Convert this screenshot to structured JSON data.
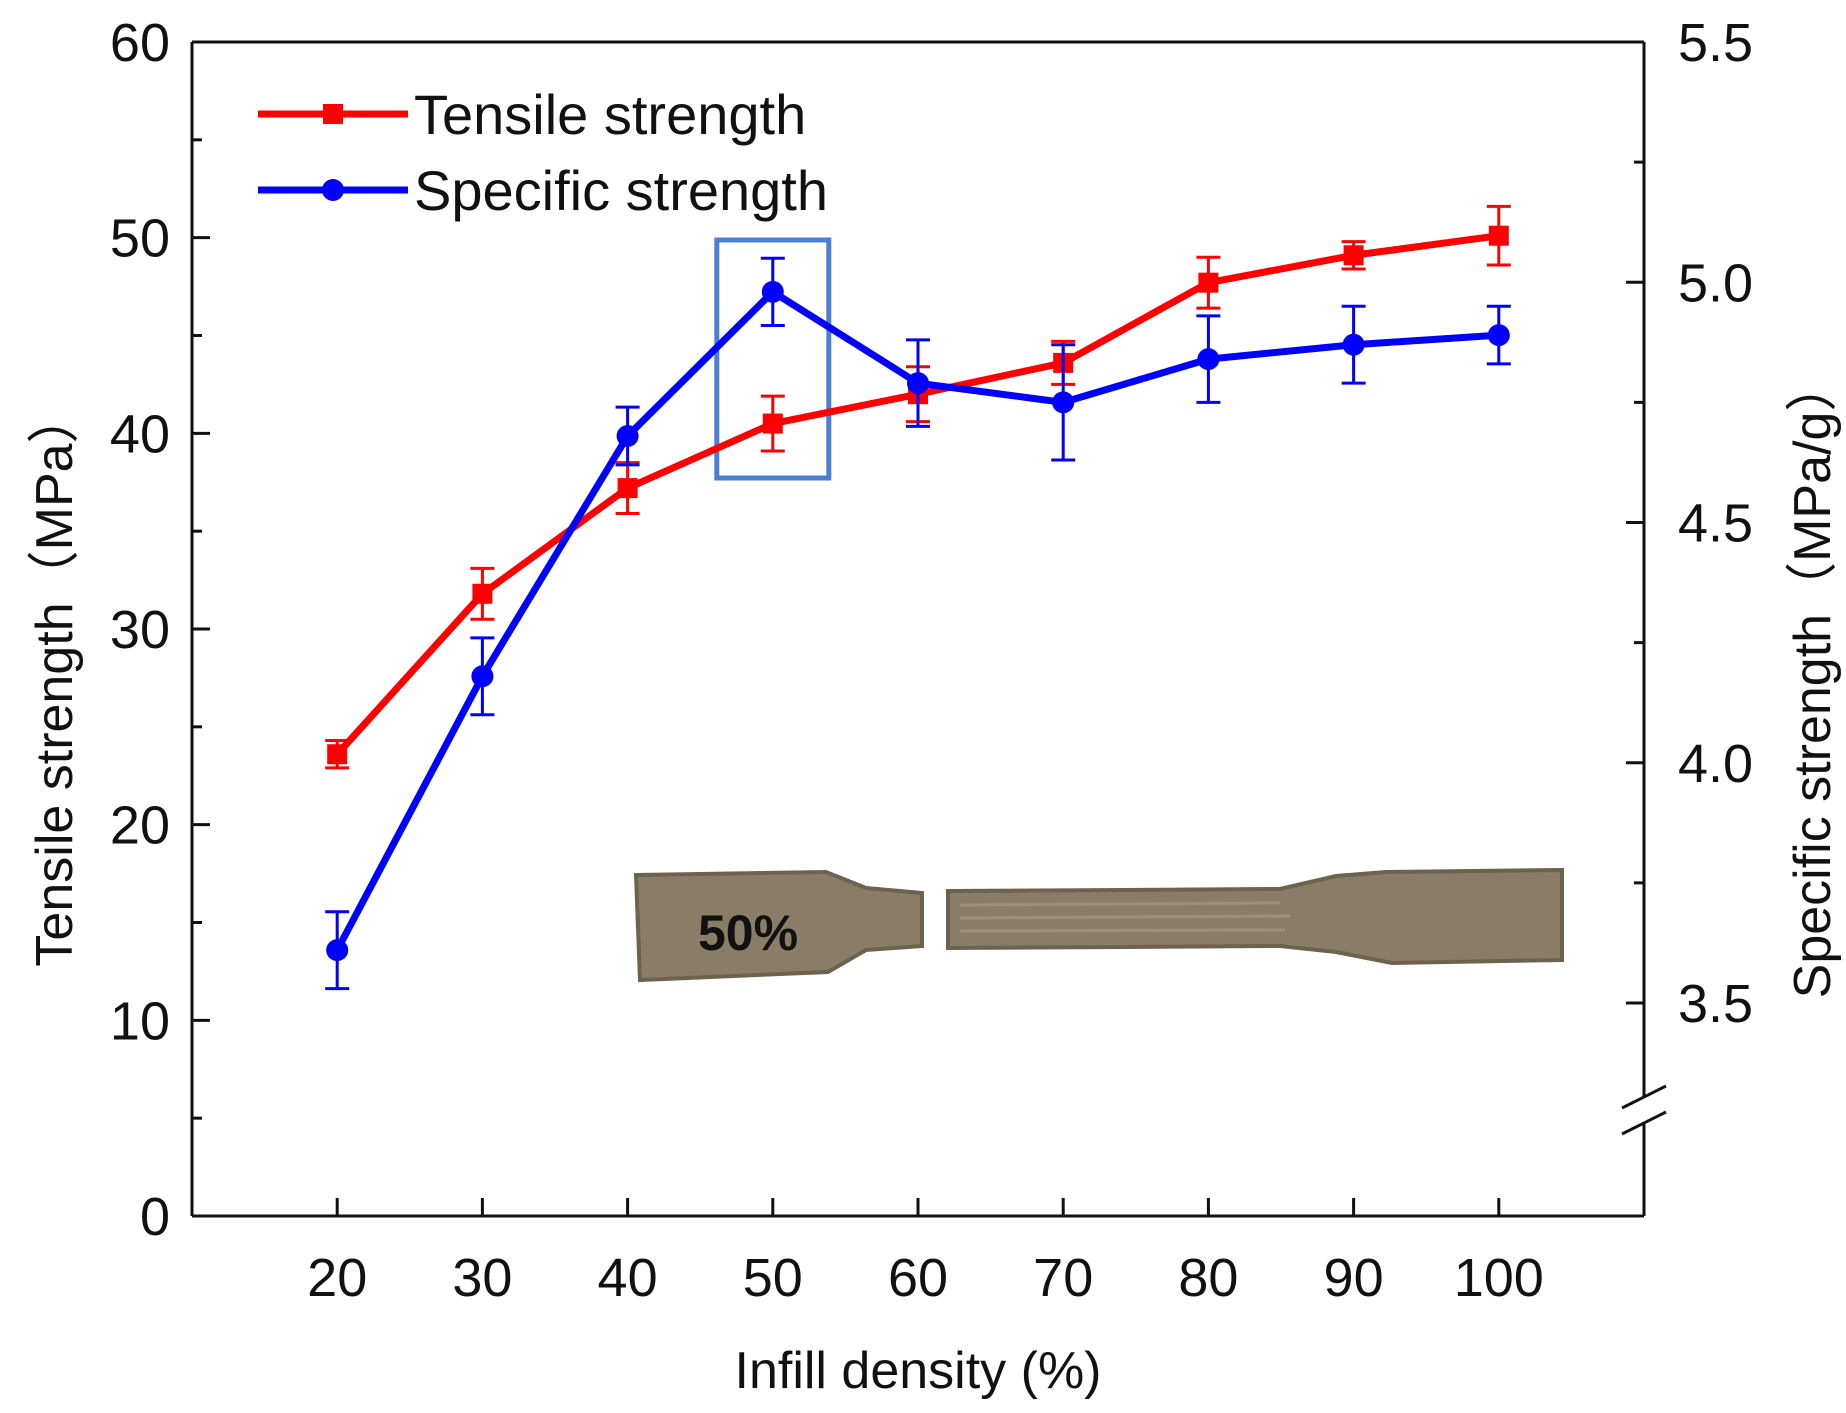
{
  "chart_data": {
    "type": "line",
    "xlabel": "Infill density (%)",
    "ylabel_left": "Tensile strength（MPa）",
    "ylabel_right": "Specific strength（MPa/g）",
    "x": [
      20,
      30,
      40,
      50,
      60,
      70,
      80,
      90,
      100
    ],
    "x_ticks": [
      "20",
      "30",
      "40",
      "50",
      "60",
      "70",
      "80",
      "90",
      "100"
    ],
    "xlim": [
      10,
      110
    ],
    "ylim_left": [
      0,
      60
    ],
    "y_ticks_left": [
      "0",
      "10",
      "20",
      "30",
      "40",
      "50",
      "60"
    ],
    "ylim_right": [
      3.5,
      5.5
    ],
    "y_ticks_right": [
      "3.5",
      "4.0",
      "4.5",
      "5.0",
      "5.5"
    ],
    "right_axis_break": true,
    "series": [
      {
        "name": "Tensile strength",
        "axis": "left",
        "marker": "square",
        "color": "#ff0000",
        "values": [
          23.6,
          31.8,
          37.2,
          40.5,
          42.0,
          43.6,
          47.7,
          49.1,
          50.1
        ],
        "errors": [
          0.7,
          1.3,
          1.3,
          1.4,
          1.4,
          1.1,
          1.3,
          0.7,
          1.5
        ]
      },
      {
        "name": "Specific strength",
        "axis": "right",
        "marker": "circle",
        "color": "#0000ff",
        "values": [
          3.61,
          4.18,
          4.68,
          4.98,
          4.79,
          4.75,
          4.84,
          4.87,
          4.89
        ],
        "errors": [
          0.08,
          0.08,
          0.06,
          0.07,
          0.09,
          0.12,
          0.09,
          0.08,
          0.06
        ]
      }
    ],
    "legend_position": "top-left",
    "highlight": {
      "x": 50,
      "color": "#4a7fd4"
    },
    "specimen_label": "50%"
  }
}
